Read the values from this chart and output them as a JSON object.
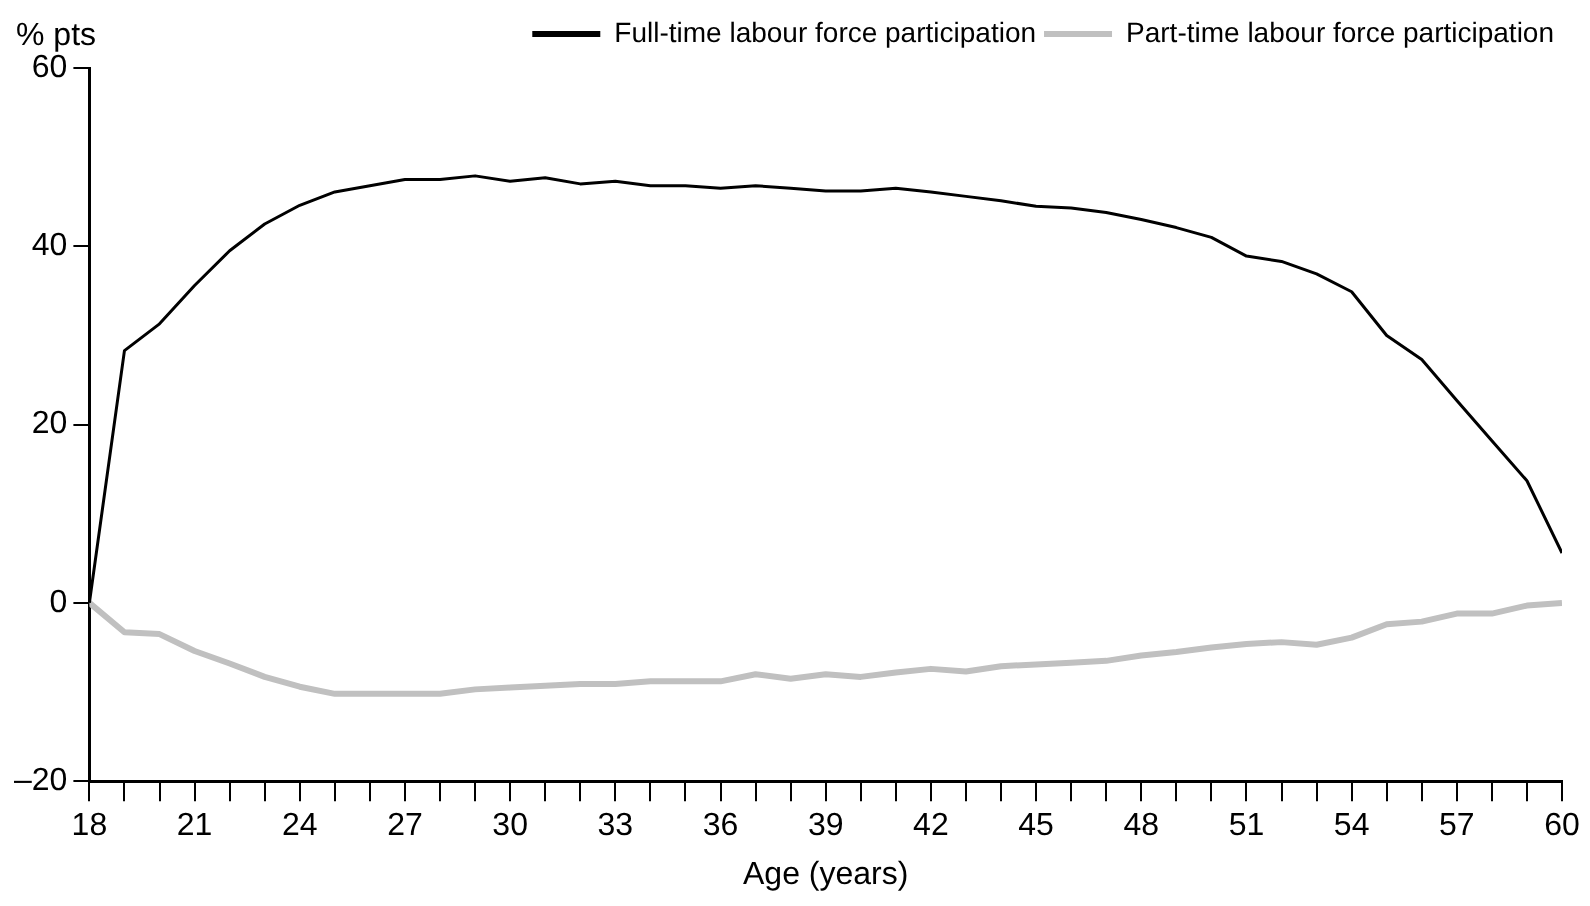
{
  "chart_data": {
    "type": "line",
    "xlabel": "Age (years)",
    "ylabel": "% pts",
    "legend": "top right",
    "grid": false,
    "marker": "none",
    "line_style": "solid",
    "x": [
      18,
      19,
      20,
      21,
      22,
      23,
      24,
      25,
      26,
      27,
      28,
      29,
      30,
      31,
      32,
      33,
      34,
      35,
      36,
      37,
      38,
      39,
      40,
      41,
      42,
      43,
      44,
      45,
      46,
      47,
      48,
      49,
      50,
      51,
      52,
      53,
      54,
      55,
      56,
      57,
      58,
      59,
      60
    ],
    "xlim": [
      18,
      60
    ],
    "xticks": [
      18,
      {
        "value": 19,
        "label": null
      },
      {
        "value": 20,
        "label": null
      },
      21,
      {
        "value": 22,
        "label": null
      },
      {
        "value": 23,
        "label": null
      },
      24,
      {
        "value": 25,
        "label": null
      },
      {
        "value": 26,
        "label": null
      },
      27,
      {
        "value": 28,
        "label": null
      },
      {
        "value": 29,
        "label": null
      },
      30,
      {
        "value": 31,
        "label": null
      },
      {
        "value": 32,
        "label": null
      },
      33,
      {
        "value": 34,
        "label": null
      },
      {
        "value": 35,
        "label": null
      },
      36,
      {
        "value": 37,
        "label": null
      },
      {
        "value": 38,
        "label": null
      },
      39,
      {
        "value": 40,
        "label": null
      },
      {
        "value": 41,
        "label": null
      },
      42,
      {
        "value": 43,
        "label": null
      },
      {
        "value": 44,
        "label": null
      },
      45,
      {
        "value": 46,
        "label": null
      },
      {
        "value": 47,
        "label": null
      },
      48,
      {
        "value": 49,
        "label": null
      },
      {
        "value": 50,
        "label": null
      },
      51,
      {
        "value": 52,
        "label": null
      },
      {
        "value": 53,
        "label": null
      },
      54,
      {
        "value": 55,
        "label": null
      },
      {
        "value": 56,
        "label": null
      },
      57,
      {
        "value": 58,
        "label": null
      },
      {
        "value": 59,
        "label": null
      },
      60
    ],
    "ylim": [
      -20,
      60
    ],
    "yticks": [
      {
        "value": -20,
        "label": "–20"
      },
      0,
      20,
      40,
      60
    ],
    "series": [
      {
        "name": "Full-time labour force participation",
        "color": "#000000",
        "values": [
          0,
          28.3,
          31.3,
          35.6,
          39.5,
          42.5,
          44.6,
          46.1,
          46.8,
          47.5,
          47.5,
          47.9,
          47.3,
          47.7,
          47.0,
          47.3,
          46.8,
          46.8,
          46.5,
          46.8,
          46.5,
          46.2,
          46.2,
          46.5,
          46.1,
          45.6,
          45.1,
          44.5,
          44.3,
          43.8,
          43.0,
          42.1,
          41.0,
          38.9,
          38.3,
          36.9,
          34.9,
          30.0,
          27.3,
          22.7,
          18.2,
          13.7,
          5.6
        ]
      },
      {
        "name": "Part-time labour force participation",
        "color": "#c0c0c0",
        "values": [
          0,
          -3.3,
          -3.5,
          -5.4,
          -6.8,
          -8.3,
          -9.4,
          -10.2,
          -10.2,
          -10.2,
          -10.2,
          -9.7,
          -9.5,
          -9.3,
          -9.1,
          -9.1,
          -8.8,
          -8.8,
          -8.8,
          -8.0,
          -8.5,
          -8.0,
          -8.3,
          -7.8,
          -7.4,
          -7.7,
          -7.1,
          -6.9,
          -6.7,
          -6.5,
          -5.9,
          -5.5,
          -5.0,
          -4.6,
          -4.4,
          -4.7,
          -3.9,
          -2.4,
          -2.1,
          -1.2,
          -1.2,
          -0.3,
          0
        ]
      }
    ]
  }
}
